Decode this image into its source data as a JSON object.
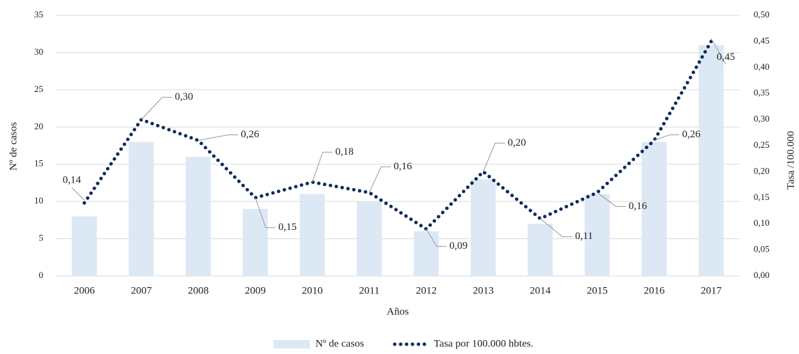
{
  "chart_data": {
    "type": "combo",
    "x_label": "Años",
    "y_label": "Nº de casos",
    "y2_label": "Tasa /100.000",
    "categories": [
      "2006",
      "2007",
      "2008",
      "2009",
      "2010",
      "2011",
      "2012",
      "2013",
      "2014",
      "2015",
      "2016",
      "2017"
    ],
    "series": [
      {
        "name": "Nº de casos",
        "type": "bar",
        "color": "#dde8f5",
        "values": [
          8,
          18,
          16,
          9,
          11,
          10,
          6,
          13,
          7,
          11,
          18,
          31
        ]
      },
      {
        "name": "Tasa por 100.000 hbtes.",
        "type": "line",
        "axis": "y2",
        "color": "#0e2a5a",
        "values": [
          0.14,
          0.3,
          0.26,
          0.15,
          0.18,
          0.16,
          0.09,
          0.2,
          0.11,
          0.16,
          0.26,
          0.45
        ],
        "value_labels": [
          "0,14",
          "0,30",
          "0,26",
          "0,15",
          "0,18",
          "0,16",
          "0,09",
          "0,20",
          "0,11",
          "0,16",
          "0,26",
          "0,45"
        ]
      }
    ],
    "ylim": [
      0,
      35
    ],
    "yticks": [
      0,
      5,
      10,
      15,
      20,
      25,
      30,
      35
    ],
    "y2lim": [
      0,
      0.5
    ],
    "y2ticks": [
      {
        "value": 0,
        "label": "0,00"
      },
      {
        "value": 0.05,
        "label": "0,05"
      },
      {
        "value": 0.1,
        "label": "0,10"
      },
      {
        "value": 0.15,
        "label": "0,15"
      },
      {
        "value": 0.2,
        "label": "0,20"
      },
      {
        "value": 0.25,
        "label": "0,25"
      },
      {
        "value": 0.3,
        "label": "0,30"
      },
      {
        "value": 0.35,
        "label": "0,35"
      },
      {
        "value": 0.4,
        "label": "0,40"
      },
      {
        "value": 0.45,
        "label": "0,45"
      },
      {
        "value": 0.5,
        "label": "0,50"
      }
    ],
    "grid": true,
    "legend": "bottom"
  }
}
